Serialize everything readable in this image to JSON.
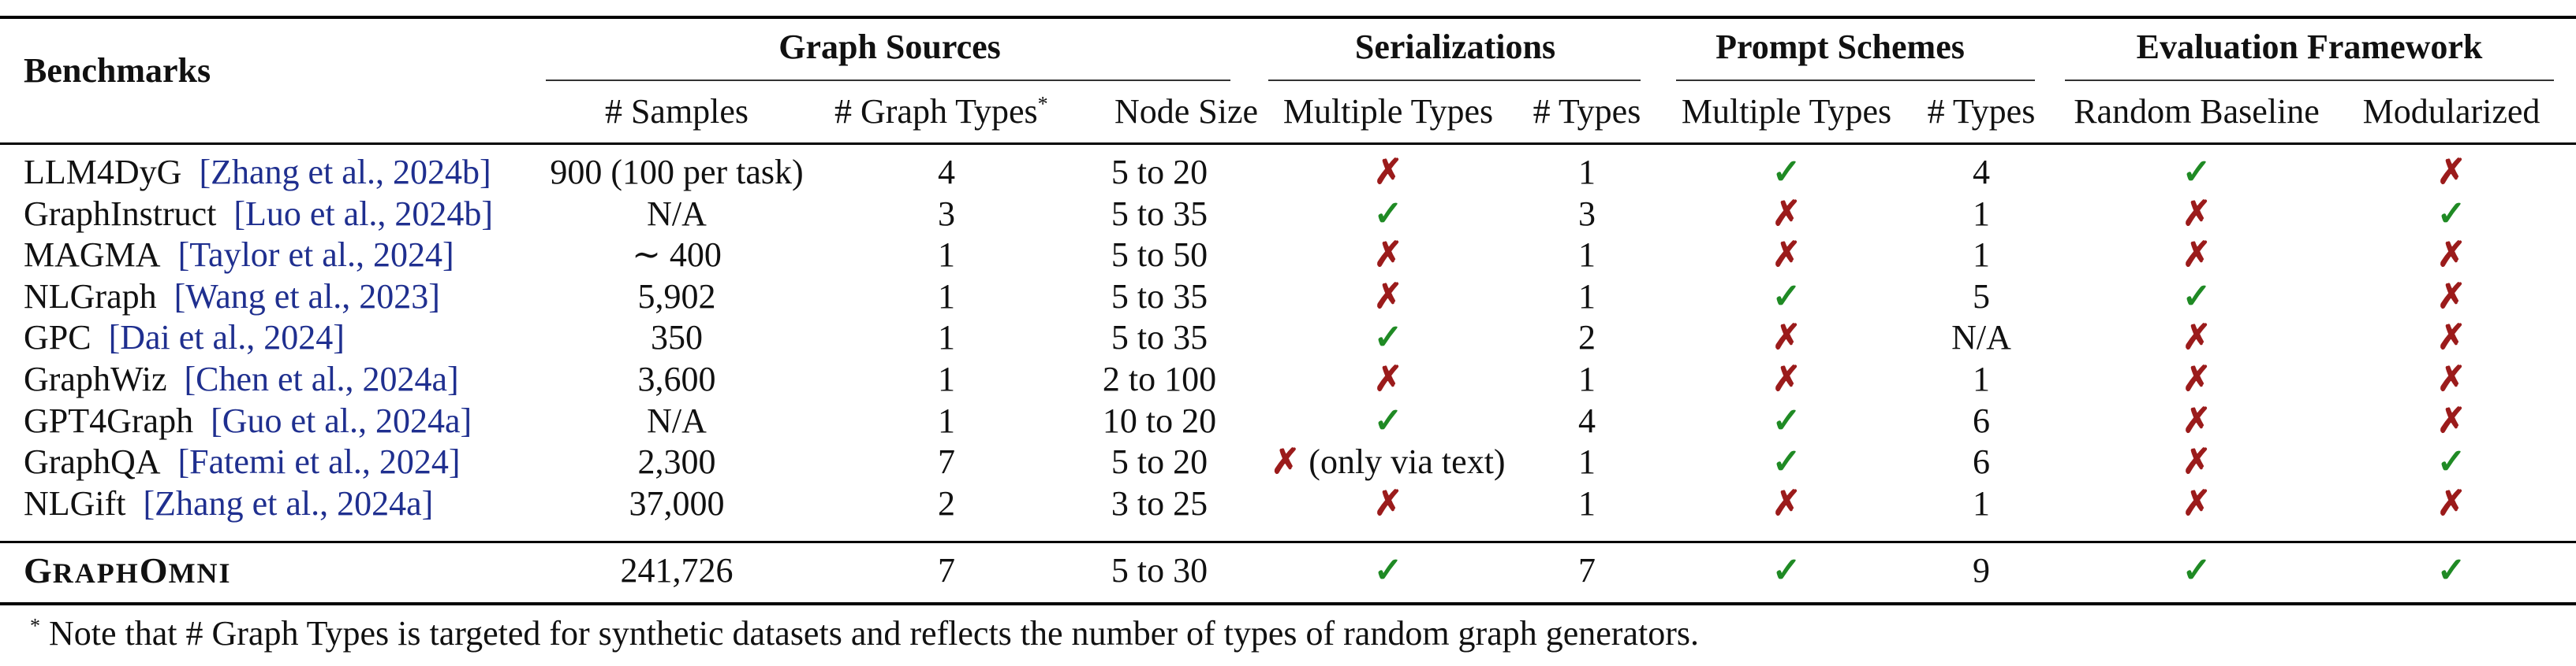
{
  "header": {
    "benchmarks": "Benchmarks",
    "groups": {
      "graph_sources": "Graph Sources",
      "serializations": "Serializations",
      "prompt_schemes": "Prompt Schemes",
      "evaluation": "Evaluation Framework"
    },
    "columns": {
      "samples": "# Samples",
      "graph_types": "# Graph Types",
      "graph_types_mark": "*",
      "node_size": "Node Size",
      "ser_multiple": "Multiple Types",
      "ser_types": "# Types",
      "prompt_multiple": "Multiple Types",
      "prompt_types": "# Types",
      "random_baseline": "Random Baseline",
      "modularized": "Modularized"
    }
  },
  "marks": {
    "check": "✓",
    "cross": "✗"
  },
  "rows": [
    {
      "name": "LLM4DyG",
      "cite": "[Zhang et al., 2024b]",
      "samples": "900 (100 per task)",
      "graph_types": "4",
      "node_size": "5 to 20",
      "ser_multiple": "✗",
      "ser_types": "1",
      "prompt_multiple": "✓",
      "prompt_types": "4",
      "random_baseline": "✓",
      "modularized": "✗"
    },
    {
      "name": "GraphInstruct",
      "cite": "[Luo et al., 2024b]",
      "samples": "N/A",
      "graph_types": "3",
      "node_size": "5 to 35",
      "ser_multiple": "✓",
      "ser_types": "3",
      "prompt_multiple": "✗",
      "prompt_types": "1",
      "random_baseline": "✗",
      "modularized": "✓"
    },
    {
      "name": "MAGMA",
      "cite": "[Taylor et al., 2024]",
      "samples": "∼ 400",
      "graph_types": "1",
      "node_size": "5 to 50",
      "ser_multiple": "✗",
      "ser_types": "1",
      "prompt_multiple": "✗",
      "prompt_types": "1",
      "random_baseline": "✗",
      "modularized": "✗"
    },
    {
      "name": "NLGraph",
      "cite": "[Wang et al., 2023]",
      "samples": "5,902",
      "graph_types": "1",
      "node_size": "5 to 35",
      "ser_multiple": "✗",
      "ser_types": "1",
      "prompt_multiple": "✓",
      "prompt_types": "5",
      "random_baseline": "✓",
      "modularized": "✗"
    },
    {
      "name": "GPC",
      "cite": "[Dai et al., 2024]",
      "samples": "350",
      "graph_types": "1",
      "node_size": "5 to 35",
      "ser_multiple": "✓",
      "ser_types": "2",
      "prompt_multiple": "✗",
      "prompt_types": "N/A",
      "random_baseline": "✗",
      "modularized": "✗"
    },
    {
      "name": "GraphWiz",
      "cite": "[Chen et al., 2024a]",
      "samples": "3,600",
      "graph_types": "1",
      "node_size": "2 to 100",
      "ser_multiple": "✗",
      "ser_types": "1",
      "prompt_multiple": "✗",
      "prompt_types": "1",
      "random_baseline": "✗",
      "modularized": "✗"
    },
    {
      "name": "GPT4Graph",
      "cite": "[Guo et al., 2024a]",
      "samples": "N/A",
      "graph_types": "1",
      "node_size": "10 to 20",
      "ser_multiple": "✓",
      "ser_types": "4",
      "prompt_multiple": "✓",
      "prompt_types": "6",
      "random_baseline": "✗",
      "modularized": "✗"
    },
    {
      "name": "GraphQA",
      "cite": "[Fatemi et al., 2024]",
      "samples": "2,300",
      "graph_types": "7",
      "node_size": "5 to 20",
      "ser_multiple": "✗",
      "ser_note": " (only via text)",
      "ser_types": "1",
      "prompt_multiple": "✓",
      "prompt_types": "6",
      "random_baseline": "✗",
      "modularized": "✓"
    },
    {
      "name": "NLGift",
      "cite": "[Zhang et al., 2024a]",
      "samples": "37,000",
      "graph_types": "2",
      "node_size": "3 to 25",
      "ser_multiple": "✗",
      "ser_types": "1",
      "prompt_multiple": "✗",
      "prompt_types": "1",
      "random_baseline": "✗",
      "modularized": "✗"
    }
  ],
  "omni": {
    "name_parts": [
      "G",
      "RAPH",
      "O",
      "MNI"
    ],
    "samples": "241,726",
    "graph_types": "7",
    "node_size": "5 to 30",
    "ser_multiple": "✓",
    "ser_types": "7",
    "prompt_multiple": "✓",
    "prompt_types": "9",
    "random_baseline": "✓",
    "modularized": "✓"
  },
  "footnote": {
    "mark": "*",
    "text": " Note that # Graph Types is targeted for synthetic datasets and reflects the number of types of random graph generators."
  }
}
